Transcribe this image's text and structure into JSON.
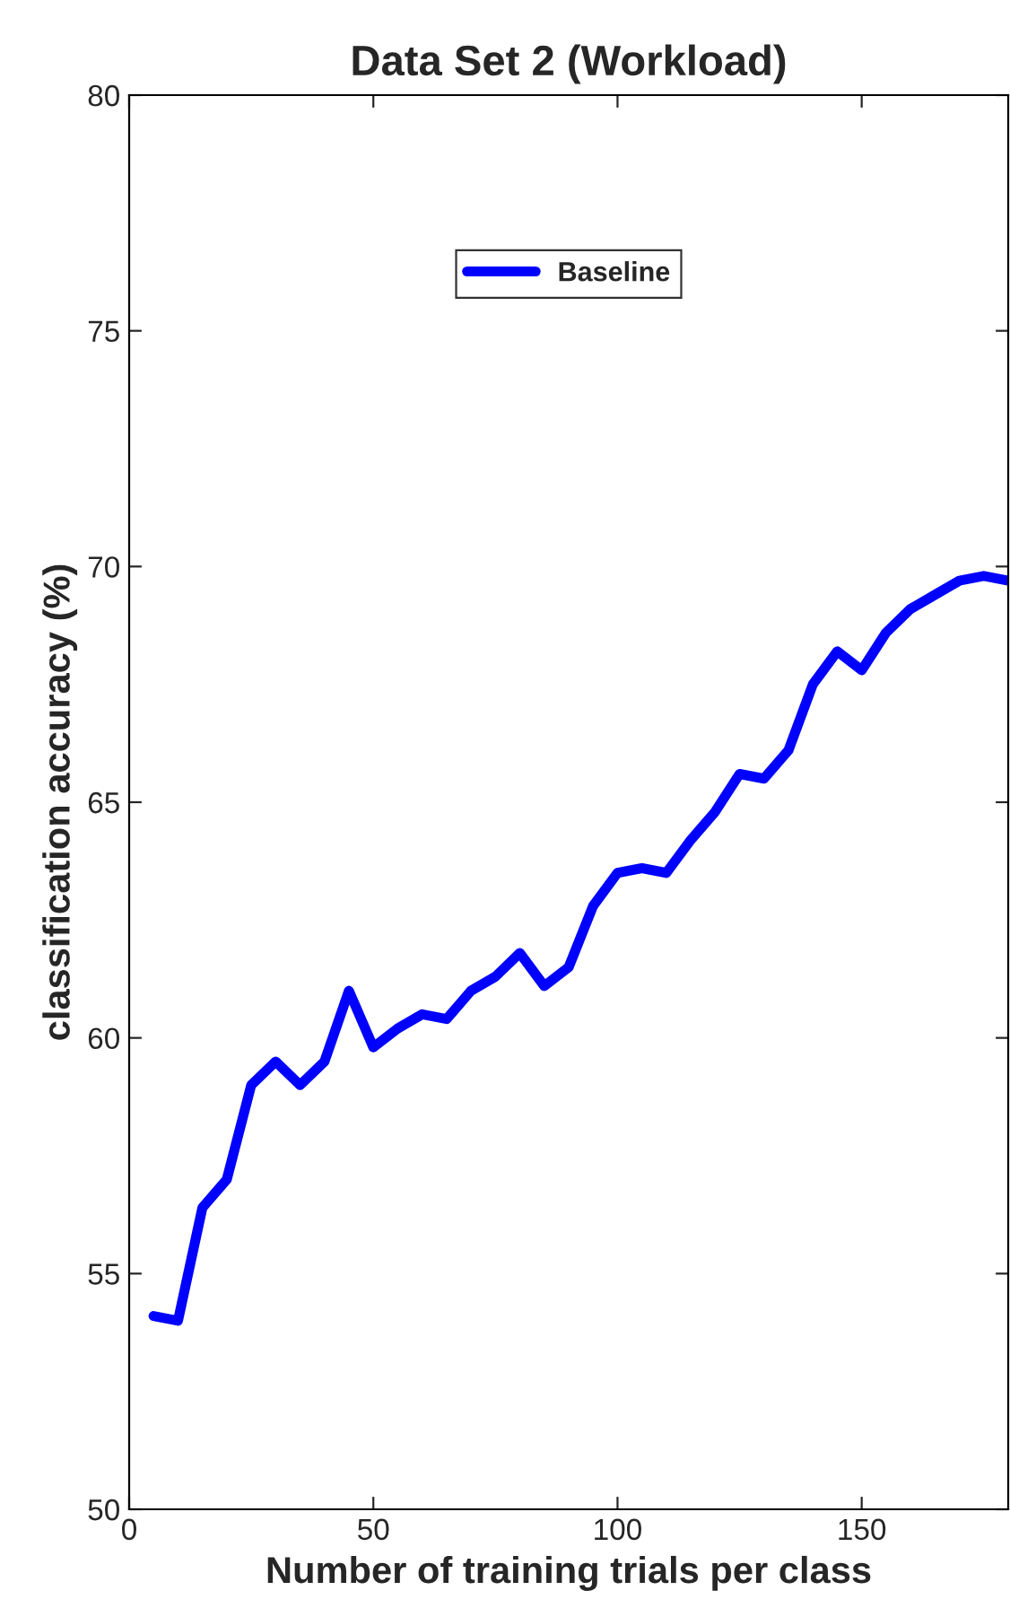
{
  "chart_data": {
    "type": "line",
    "title": "Data Set 2 (Workload)",
    "xlabel": "Number of training trials per class",
    "ylabel": "classification accuracy (%)",
    "x": [
      5,
      10,
      15,
      20,
      25,
      30,
      35,
      40,
      45,
      50,
      55,
      60,
      65,
      70,
      75,
      80,
      85,
      90,
      95,
      100,
      105,
      110,
      115,
      120,
      125,
      130,
      135,
      140,
      145,
      150,
      155,
      160,
      165,
      170,
      175,
      180
    ],
    "series": [
      {
        "name": "Baseline",
        "color": "#0000ff",
        "values": [
          54.1,
          54.0,
          56.4,
          57.0,
          59.0,
          59.5,
          59.0,
          59.5,
          61.0,
          59.8,
          60.2,
          60.5,
          60.4,
          61.0,
          61.3,
          61.8,
          61.1,
          61.5,
          62.8,
          63.5,
          63.6,
          63.5,
          64.2,
          64.8,
          65.6,
          65.5,
          66.1,
          67.5,
          68.2,
          67.8,
          68.6,
          69.1,
          69.4,
          69.7,
          69.8,
          69.7
        ]
      }
    ],
    "xlim": [
      0,
      180
    ],
    "ylim": [
      50,
      80
    ],
    "xticks": [
      0,
      50,
      100,
      150
    ],
    "yticks": [
      50,
      55,
      60,
      65,
      70,
      75,
      80
    ],
    "grid": false,
    "legend": "top",
    "marker": "none",
    "line_style": "solid"
  }
}
